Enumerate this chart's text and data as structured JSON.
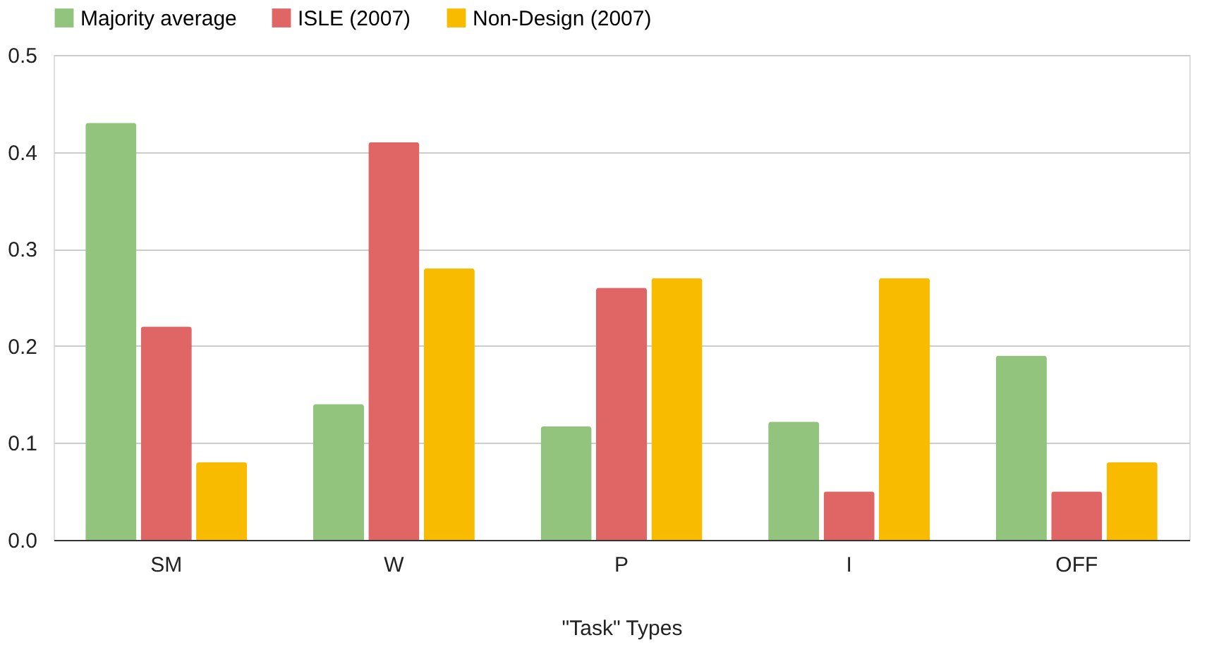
{
  "chart_data": {
    "type": "bar",
    "xlabel": "\"Task\" Types",
    "categories": [
      "SM",
      "W",
      "P",
      "I",
      "OFF"
    ],
    "series": [
      {
        "name": "Majority average",
        "color": "#93c47d",
        "values": [
          0.43,
          0.14,
          0.117,
          0.122,
          0.19
        ]
      },
      {
        "name": "ISLE (2007)",
        "color": "#e06666",
        "values": [
          0.22,
          0.41,
          0.26,
          0.05,
          0.05
        ]
      },
      {
        "name": "Non-Design (2007)",
        "color": "#f9bb00",
        "values": [
          0.08,
          0.28,
          0.27,
          0.27,
          0.08
        ]
      }
    ],
    "ylim": [
      0,
      0.5
    ],
    "yticks": [
      {
        "value": 0,
        "label": "0.0"
      },
      0.1,
      0.2,
      0.3,
      0.4,
      0.5
    ],
    "grid": "y",
    "legend": "top"
  }
}
